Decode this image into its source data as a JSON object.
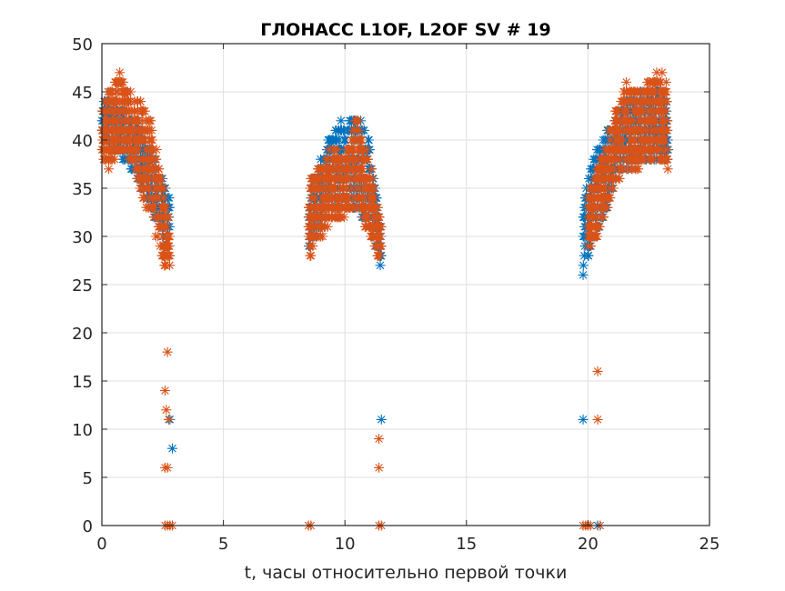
{
  "chart_data": {
    "type": "scatter",
    "title": "ГЛОНАСС L1OF, L2OF SV # 19",
    "xlabel": "t, часы относительно первой точки",
    "ylabel": "",
    "xlim": [
      0,
      25
    ],
    "ylim": [
      0,
      50
    ],
    "xticks": [
      "0",
      "5",
      "10",
      "15",
      "20",
      "25"
    ],
    "yticks": [
      "0",
      "5",
      "10",
      "15",
      "20",
      "25",
      "30",
      "35",
      "40",
      "45",
      "50"
    ],
    "grid": true,
    "marker": "asterisk",
    "series": [
      {
        "name": "L1OF",
        "color": "#0072BD",
        "segments": [
          {
            "t": [
              0.0,
              0.5,
              1.0,
              1.5,
              2.0,
              2.3,
              2.6,
              2.8
            ],
            "lo": [
              40,
              39,
              38,
              36,
              33,
              31,
              29,
              27
            ],
            "hi": [
              44,
              44,
              43,
              42,
              39,
              37,
              35,
              34
            ]
          },
          {
            "t": [
              8.5,
              9.0,
              9.5,
              10.0,
              10.5,
              11.0,
              11.5
            ],
            "lo": [
              29,
              31,
              33,
              34,
              33,
              31,
              27
            ],
            "hi": [
              35,
              38,
              41,
              42,
              43,
              40,
              31
            ]
          },
          {
            "t": [
              19.8,
              20.2,
              20.6,
              21.0,
              21.5,
              22.0,
              22.5,
              23.0,
              23.3
            ],
            "lo": [
              27,
              29,
              31,
              35,
              37,
              38,
              38,
              38,
              38
            ],
            "hi": [
              34,
              38,
              40,
              42,
              44,
              45,
              45,
              46,
              45
            ]
          }
        ],
        "outliers": [
          [
            2.8,
            11
          ],
          [
            2.9,
            8
          ],
          [
            11.5,
            11
          ],
          [
            19.8,
            11
          ],
          [
            19.8,
            26
          ],
          [
            20.4,
            0
          ]
        ]
      },
      {
        "name": "L2OF",
        "color": "#D95319",
        "segments": [
          {
            "t": [
              0.0,
              0.4,
              0.8,
              1.2,
              1.6,
              2.0,
              2.3,
              2.6,
              2.8
            ],
            "lo": [
              38,
              37,
              39,
              38,
              35,
              32,
              29,
              27,
              27
            ],
            "hi": [
              43,
              46,
              47,
              45,
              44,
              42,
              38,
              34,
              31
            ]
          },
          {
            "t": [
              8.5,
              9.0,
              9.5,
              10.0,
              10.5,
              11.0,
              11.5
            ],
            "lo": [
              28,
              30,
              32,
              32,
              33,
              30,
              27
            ],
            "hi": [
              35,
              38,
              39,
              38,
              43,
              38,
              31
            ]
          },
          {
            "t": [
              20.0,
              20.4,
              20.8,
              21.2,
              21.6,
              22.0,
              22.5,
              23.0,
              23.3
            ],
            "lo": [
              29,
              30,
              33,
              36,
              37,
              37,
              38,
              38,
              37
            ],
            "hi": [
              34,
              37,
              40,
              43,
              46,
              45,
              46,
              47,
              46
            ]
          }
        ],
        "outliers": [
          [
            2.7,
            18
          ],
          [
            2.6,
            14
          ],
          [
            2.65,
            12
          ],
          [
            2.75,
            11
          ],
          [
            2.6,
            6
          ],
          [
            2.7,
            6
          ],
          [
            2.6,
            0
          ],
          [
            2.7,
            0
          ],
          [
            2.8,
            0
          ],
          [
            2.9,
            0
          ],
          [
            8.5,
            0
          ],
          [
            8.6,
            0
          ],
          [
            11.4,
            9
          ],
          [
            11.4,
            6
          ],
          [
            11.4,
            0
          ],
          [
            11.5,
            0
          ],
          [
            20.4,
            16
          ],
          [
            20.4,
            11
          ],
          [
            19.8,
            0
          ],
          [
            19.9,
            0
          ],
          [
            20.0,
            0
          ],
          [
            20.1,
            0
          ],
          [
            20.5,
            0
          ]
        ]
      }
    ]
  }
}
